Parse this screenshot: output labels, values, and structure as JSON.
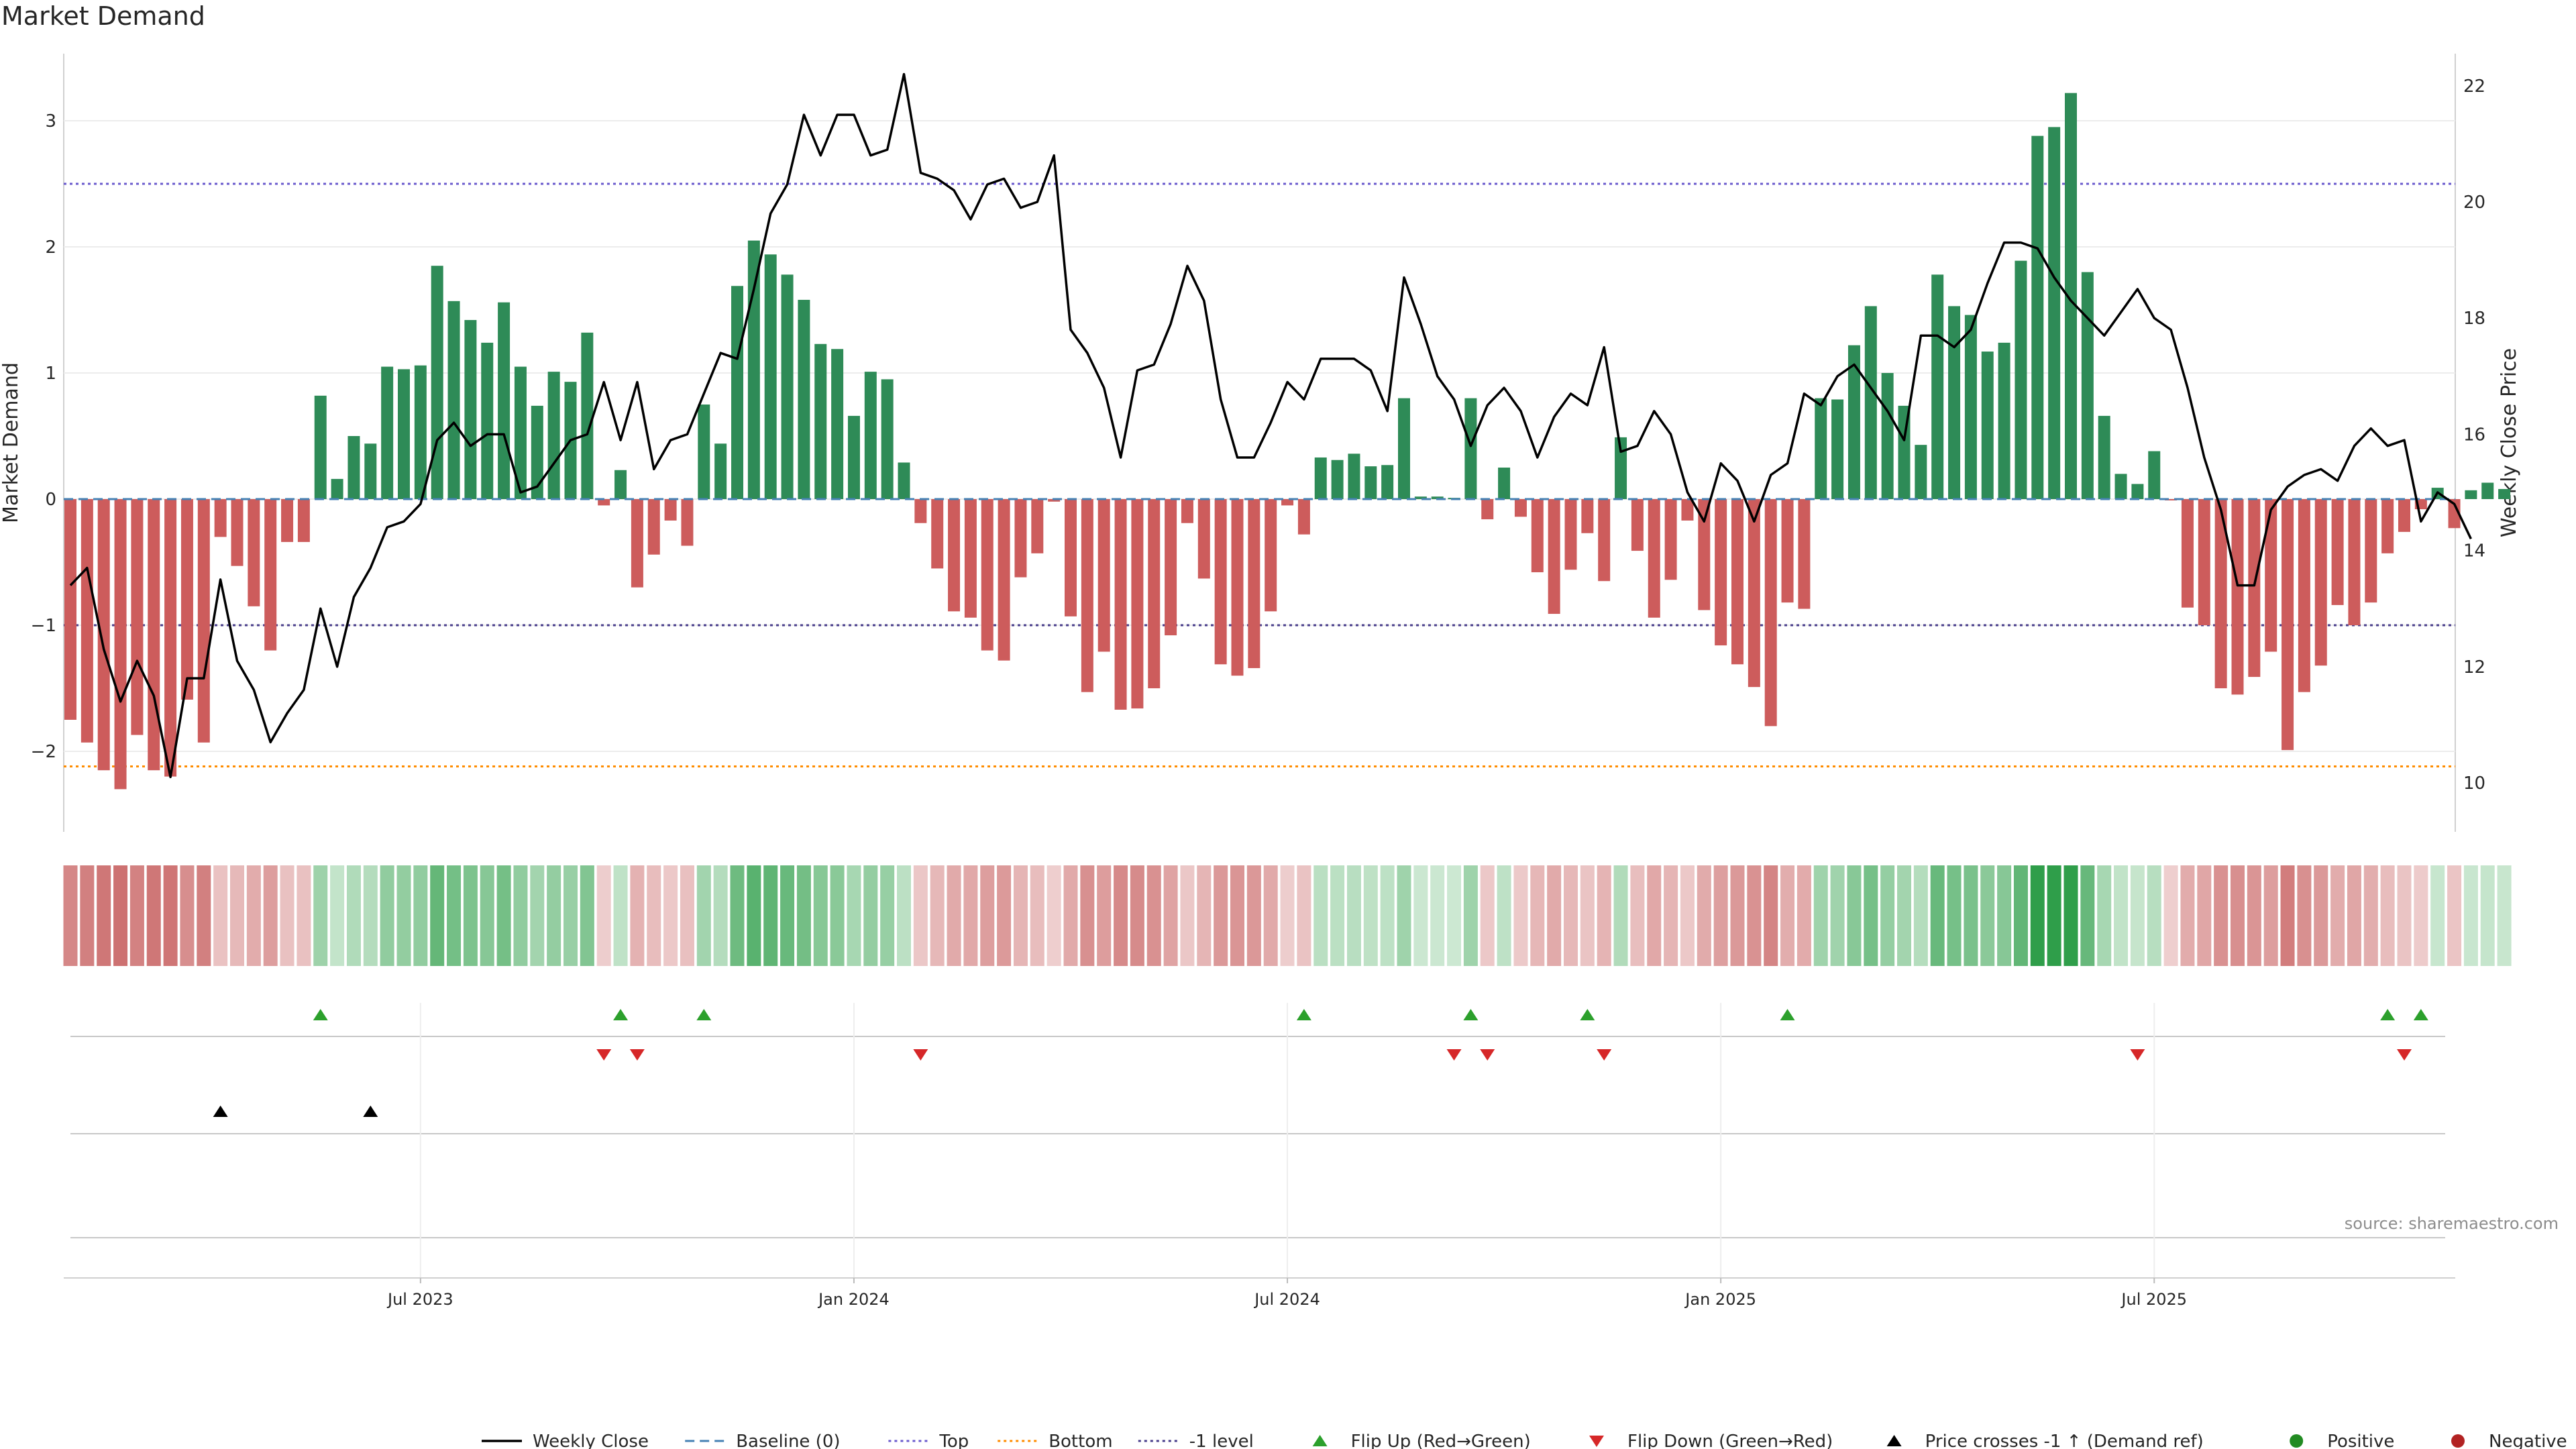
{
  "title": "Market Demand",
  "source": "source: sharemaestro.com",
  "colors": {
    "positive": "#2e8b57",
    "negative": "#cd5c5c",
    "close": "#000000",
    "baseline": "#4682b4",
    "top": "#6a5acd",
    "bottom": "#ff8c00",
    "minus1": "#483d8b",
    "flip_up": "#2ca02c",
    "flip_down": "#d62728",
    "cross": "#000000",
    "pos_dot": "#228b22",
    "neg_dot": "#b22222"
  },
  "chart_data": {
    "type": "bar+line",
    "title": "Market Demand",
    "ylabel": "Market Demand",
    "y2label": "Weekly Close Price",
    "ylim": [
      -2.6,
      3.5
    ],
    "y2lim": [
      9.5,
      22.4
    ],
    "yticks": [
      3,
      2,
      1,
      0,
      -1,
      -2
    ],
    "ytick_labels": [
      "3",
      "2",
      "1",
      "0",
      "−1",
      "−2"
    ],
    "y2ticks": [
      22,
      20,
      18,
      16,
      14,
      12,
      10
    ],
    "xticks": [
      {
        "week": 21,
        "label": "Jul 2023"
      },
      {
        "week": 47,
        "label": "Jan 2024"
      },
      {
        "week": 73,
        "label": "Jul 2024"
      },
      {
        "week": 99,
        "label": "Jan 2025"
      },
      {
        "week": 125,
        "label": "Jul 2025"
      }
    ],
    "reference_lines": {
      "top": 2.5,
      "bottom": -2.12,
      "minus1": -1,
      "baseline": 0
    },
    "demand": [
      -1.75,
      -1.93,
      -2.15,
      -2.3,
      -1.87,
      -2.15,
      -2.2,
      -1.59,
      -1.93,
      -0.3,
      -0.53,
      -0.85,
      -1.2,
      -0.34,
      -0.34,
      0.82,
      0.16,
      0.5,
      0.44,
      1.05,
      1.03,
      1.06,
      1.85,
      1.57,
      1.42,
      1.24,
      1.56,
      1.05,
      0.74,
      1.01,
      0.93,
      1.32,
      -0.05,
      0.23,
      -0.7,
      -0.44,
      -0.17,
      -0.37,
      0.75,
      0.44,
      1.69,
      2.05,
      1.94,
      1.78,
      1.58,
      1.23,
      1.19,
      0.66,
      1.01,
      0.95,
      0.29,
      -0.19,
      -0.55,
      -0.89,
      -0.94,
      -1.2,
      -1.28,
      -0.62,
      -0.43,
      -0.02,
      -0.93,
      -1.53,
      -1.21,
      -1.67,
      -1.66,
      -1.5,
      -1.08,
      -0.19,
      -0.63,
      -1.31,
      -1.4,
      -1.34,
      -0.89,
      -0.05,
      -0.28,
      0.33,
      0.31,
      0.36,
      0.26,
      0.27,
      0.8,
      0.02,
      0.02,
      0.01,
      0.8,
      -0.16,
      0.25,
      -0.14,
      -0.58,
      -0.91,
      -0.56,
      -0.27,
      -0.65,
      0.49,
      -0.41,
      -0.94,
      -0.64,
      -0.17,
      -0.88,
      -1.16,
      -1.31,
      -1.49,
      -1.8,
      -0.82,
      -0.87,
      0.8,
      0.79,
      1.22,
      1.53,
      1.0,
      0.74,
      0.43,
      1.78,
      1.53,
      1.46,
      1.17,
      1.24,
      1.89,
      2.88,
      2.95,
      3.22,
      1.8,
      0.66,
      0.2,
      0.12,
      0.38,
      -0.01,
      -0.86,
      -1.0,
      -1.5,
      -1.55,
      -1.41,
      -1.21,
      -1.99,
      -1.53,
      -1.32,
      -0.84,
      -1.0,
      -0.82,
      -0.43,
      -0.26,
      -0.08,
      0.09,
      -0.23,
      0.07,
      0.13,
      0.08
    ],
    "close": [
      13.4,
      13.7,
      12.3,
      11.4,
      12.1,
      11.5,
      10.1,
      11.8,
      11.8,
      13.5,
      12.1,
      11.6,
      10.7,
      11.2,
      11.6,
      13.0,
      12.0,
      13.2,
      13.7,
      14.4,
      14.5,
      14.8,
      15.9,
      16.2,
      15.8,
      16.0,
      16.0,
      15.0,
      15.1,
      15.5,
      15.9,
      16.0,
      16.9,
      15.9,
      16.9,
      15.4,
      15.9,
      16.0,
      16.7,
      17.4,
      17.3,
      18.5,
      19.8,
      20.3,
      21.5,
      20.8,
      21.5,
      21.5,
      20.8,
      20.9,
      22.2,
      20.5,
      20.4,
      20.2,
      19.7,
      20.3,
      20.4,
      19.9,
      20.0,
      20.8,
      17.8,
      17.4,
      16.8,
      15.6,
      17.1,
      17.2,
      17.9,
      18.9,
      18.3,
      16.6,
      15.6,
      15.6,
      16.2,
      16.9,
      16.6,
      17.3,
      17.3,
      17.3,
      17.1,
      16.4,
      18.7,
      17.9,
      17.0,
      16.6,
      15.8,
      16.5,
      16.8,
      16.4,
      15.6,
      16.3,
      16.7,
      16.5,
      17.5,
      15.7,
      15.8,
      16.4,
      16.0,
      15.0,
      14.5,
      15.5,
      15.2,
      14.5,
      15.3,
      15.5,
      16.7,
      16.5,
      17.0,
      17.2,
      16.8,
      16.4,
      15.9,
      17.7,
      17.7,
      17.5,
      17.8,
      18.6,
      19.3,
      19.3,
      19.2,
      18.7,
      18.3,
      18.0,
      17.7,
      18.1,
      18.5,
      18.0,
      17.8,
      16.8,
      15.6,
      14.7,
      13.4,
      13.4,
      14.7,
      15.1,
      15.3,
      15.4,
      15.2,
      15.8,
      16.1,
      15.8,
      15.9,
      14.5,
      15.0,
      14.8,
      14.2
    ],
    "flip_up_weeks": [
      15,
      33,
      38,
      74,
      84,
      91,
      103,
      139,
      141
    ],
    "flip_down_weeks": [
      32,
      34,
      51,
      83,
      85,
      92,
      124,
      140
    ],
    "cross_weeks": [
      9,
      18
    ],
    "legend": [
      {
        "key": "close",
        "label": "Weekly Close",
        "symbol": "line"
      },
      {
        "key": "baseline",
        "label": "Baseline (0)",
        "symbol": "dash"
      },
      {
        "key": "top",
        "label": "Top",
        "symbol": "dot"
      },
      {
        "key": "bottom",
        "label": "Bottom",
        "symbol": "dot"
      },
      {
        "key": "minus1",
        "label": "-1 level",
        "symbol": "dot"
      },
      {
        "key": "flip_up",
        "label": "Flip Up (Red→Green)",
        "symbol": "tri-up"
      },
      {
        "key": "flip_down",
        "label": "Flip Down (Green→Red)",
        "symbol": "tri-down"
      },
      {
        "key": "cross",
        "label": "Price crosses -1 ↑ (Demand ref)",
        "symbol": "tri-up"
      },
      {
        "key": "pos_dot",
        "label": "Positive",
        "symbol": "circle"
      },
      {
        "key": "neg_dot",
        "label": "Negative",
        "symbol": "circle"
      }
    ]
  }
}
